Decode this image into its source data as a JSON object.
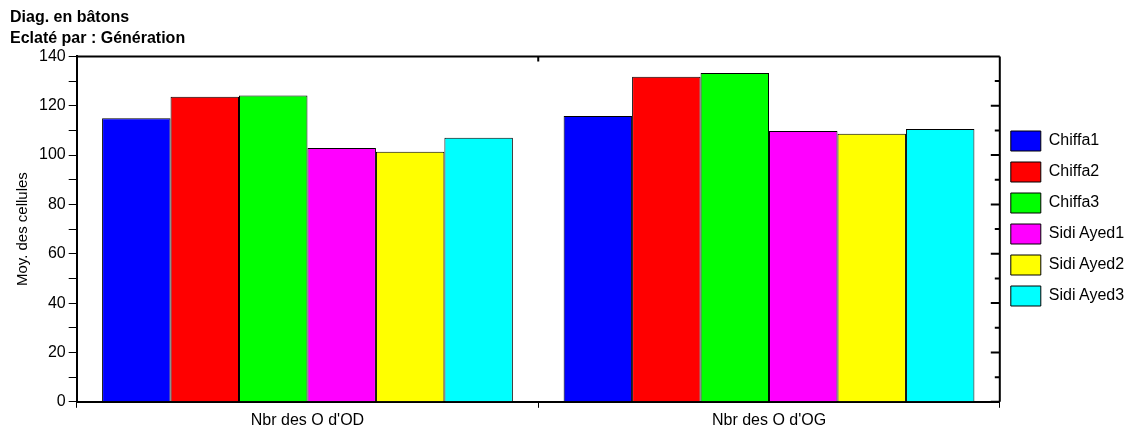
{
  "chart_data": {
    "type": "bar",
    "title": "Diag. en bâtons",
    "subtitle": "Eclaté par : Génération",
    "ylabel": "Moy. des cellules",
    "categories": [
      "Nbr des O d'OD",
      "Nbr des O d'OG"
    ],
    "series": [
      {
        "name": "Chiffa1",
        "color": "#0000ff",
        "values": [
          114.9,
          115.8
        ]
      },
      {
        "name": "Chiffa2",
        "color": "#ff0000",
        "values": [
          123.6,
          131.8
        ]
      },
      {
        "name": "Chiffa3",
        "color": "#00ff00",
        "values": [
          124.2,
          133.3
        ]
      },
      {
        "name": "Sidi Ayed1",
        "color": "#ff00ff",
        "values": [
          102.9,
          109.8
        ]
      },
      {
        "name": "Sidi Ayed2",
        "color": "#ffff00",
        "values": [
          101.4,
          108.6
        ]
      },
      {
        "name": "Sidi Ayed3",
        "color": "#00ffff",
        "values": [
          107,
          110.6
        ]
      }
    ],
    "ylim": [
      0,
      140
    ],
    "yticks": [
      0,
      {
        "value": 10,
        "label": null
      },
      20,
      {
        "value": 30,
        "label": null
      },
      40,
      {
        "value": 50,
        "label": null
      },
      60,
      {
        "value": 70,
        "label": null
      },
      80,
      {
        "value": 90,
        "label": null
      },
      100,
      {
        "value": 110,
        "label": null
      },
      120,
      {
        "value": 130,
        "label": null
      },
      140
    ],
    "grid": false,
    "legend": "right"
  }
}
